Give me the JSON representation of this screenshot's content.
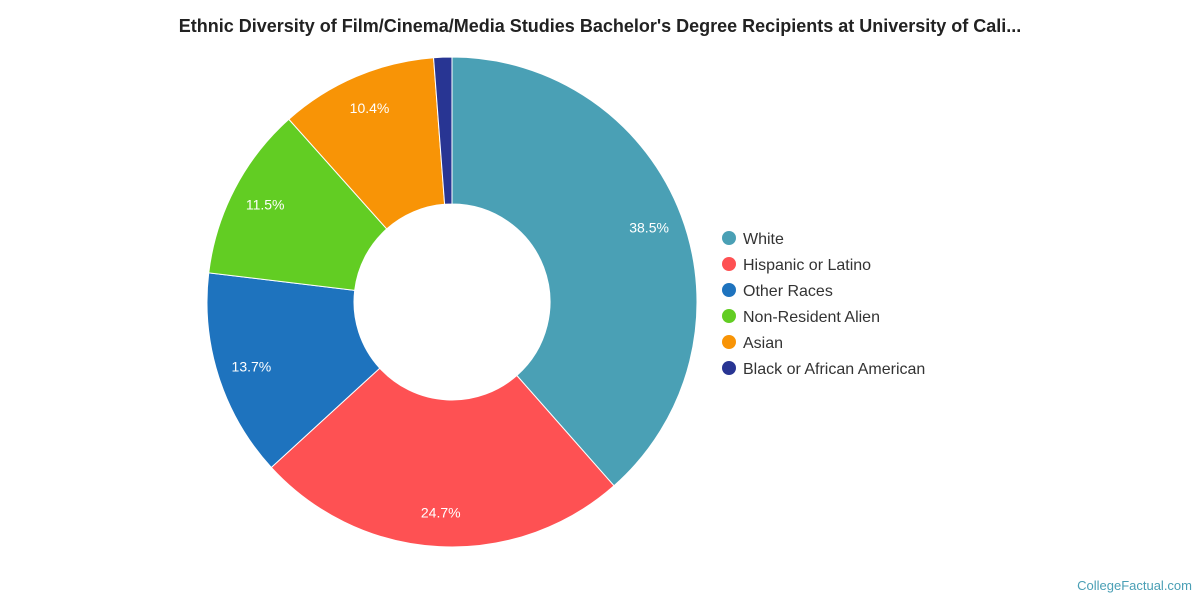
{
  "chart_data": {
    "type": "pie",
    "donut": true,
    "title": "Ethnic Diversity of Film/Cinema/Media Studies Bachelor's Degree Recipients at University of Cali...",
    "slices": [
      {
        "name": "White",
        "value": 38.5,
        "label": "38.5%",
        "color": "#4aa0b5"
      },
      {
        "name": "Hispanic or Latino",
        "value": 24.7,
        "label": "24.7%",
        "color": "#fe5153"
      },
      {
        "name": "Other Races",
        "value": 13.7,
        "label": "13.7%",
        "color": "#1e73be"
      },
      {
        "name": "Non-Resident Alien",
        "value": 11.5,
        "label": "11.5%",
        "color": "#62cd23"
      },
      {
        "name": "Asian",
        "value": 10.4,
        "label": "10.4%",
        "color": "#f89406"
      },
      {
        "name": "Black or African American",
        "value": 1.2,
        "label": "",
        "color": "#283593"
      }
    ],
    "legend_position": "right"
  },
  "watermark": "CollegeFactual.com"
}
